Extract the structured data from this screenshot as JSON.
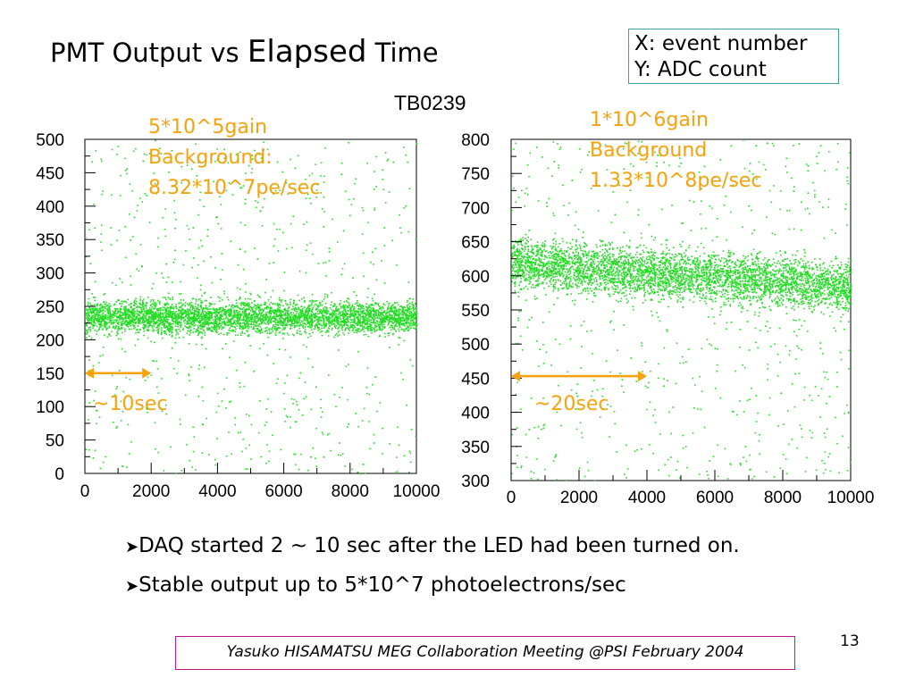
{
  "slide": {
    "title_part1": "PMT Output vs ",
    "title_part2": "Elapsed",
    "title_part3": " Time",
    "axis_legend": {
      "x": "X:  event number",
      "y": "Y:  ADC count"
    },
    "run_label": "TB0239",
    "bullets": [
      "DAQ started 2 ~ 10 sec after the LED had been turned on.",
      "Stable output up to 5*10^7 photoelectrons/sec"
    ],
    "footer": "Yasuko HISAMATSU MEG Collaboration Meeting @PSI  February 2004",
    "page_number": "13",
    "colors": {
      "points": "#22dd22",
      "annotation": "#f7a20a",
      "footer_border": "#c0148c",
      "legend_border": "#3aa0a0"
    }
  },
  "panels": [
    {
      "notes": [
        "5*10^5gain",
        "Background:",
        "8.32*10^7pe/sec"
      ],
      "interval_label": "~10sec"
    },
    {
      "notes": [
        "1*10^6gain",
        "Background",
        "1.33*10^8pe/sec"
      ],
      "interval_label": "~20sec"
    }
  ],
  "chart_data": [
    {
      "type": "scatter",
      "xlim": [
        0,
        10000
      ],
      "ylim": [
        0,
        500
      ],
      "x_ticks": [
        0,
        2000,
        4000,
        6000,
        8000,
        10000
      ],
      "y_ticks": [
        0,
        50,
        100,
        150,
        200,
        250,
        300,
        350,
        400,
        450,
        500
      ],
      "band": {
        "center": 235,
        "halfwidth": 20
      },
      "interval": {
        "x_start": 0,
        "x_end": 2000,
        "y": 150
      }
    },
    {
      "type": "scatter",
      "xlim": [
        0,
        10000
      ],
      "ylim": [
        300,
        800
      ],
      "x_ticks": [
        0,
        2000,
        4000,
        6000,
        8000,
        10000
      ],
      "y_ticks": [
        300,
        350,
        400,
        450,
        500,
        550,
        600,
        650,
        700,
        750,
        800
      ],
      "band": {
        "center_start": 620,
        "center_end": 585,
        "halfwidth": 30
      },
      "interval": {
        "x_start": 0,
        "x_end": 4000,
        "y": 453
      }
    }
  ]
}
